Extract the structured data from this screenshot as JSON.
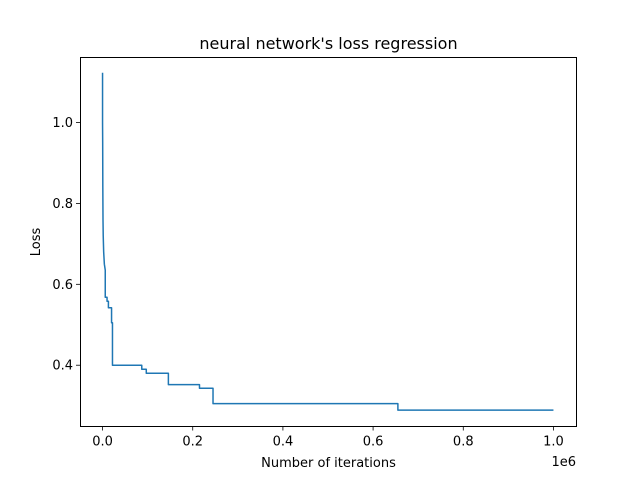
{
  "chart_data": {
    "type": "line",
    "title": "neural network's loss regression",
    "xlabel": "Number of iterations",
    "ylabel": "Loss",
    "x_offset_label": "1e6",
    "xlim": [
      -50000,
      1050000
    ],
    "ylim": [
      0.2485,
      1.1607
    ],
    "grid": false,
    "legend": "none",
    "x_ticks": [
      {
        "value": 0,
        "label": "0.0"
      },
      {
        "value": 200000,
        "label": "0.2"
      },
      {
        "value": 400000,
        "label": "0.4"
      },
      {
        "value": 600000,
        "label": "0.6"
      },
      {
        "value": 800000,
        "label": "0.8"
      },
      {
        "value": 1000000,
        "label": "1.0"
      }
    ],
    "y_ticks": [
      {
        "value": 0.4,
        "label": "0.4"
      },
      {
        "value": 0.6,
        "label": "0.6"
      },
      {
        "value": 0.8,
        "label": "0.8"
      },
      {
        "value": 1.0,
        "label": "1.0"
      }
    ],
    "series": [
      {
        "color": "#1f77b4",
        "points": [
          [
            0,
            1.123
          ],
          [
            0,
            1.0
          ],
          [
            300,
            0.95
          ],
          [
            600,
            0.84
          ],
          [
            1000,
            0.76
          ],
          [
            1500,
            0.72
          ],
          [
            2500,
            0.68
          ],
          [
            4000,
            0.65
          ],
          [
            6000,
            0.635
          ],
          [
            6000,
            0.568
          ],
          [
            10000,
            0.568
          ],
          [
            10000,
            0.558
          ],
          [
            13000,
            0.558
          ],
          [
            13000,
            0.542
          ],
          [
            20000,
            0.542
          ],
          [
            20000,
            0.505
          ],
          [
            20000,
            0.505
          ],
          [
            20000,
            0.505
          ],
          [
            22000,
            0.505
          ],
          [
            22000,
            0.455
          ],
          [
            22000,
            0.455
          ],
          [
            22000,
            0.4
          ],
          [
            87000,
            0.4
          ],
          [
            87000,
            0.39
          ],
          [
            97000,
            0.39
          ],
          [
            97000,
            0.38
          ],
          [
            146000,
            0.38
          ],
          [
            146000,
            0.352
          ],
          [
            215000,
            0.352
          ],
          [
            215000,
            0.343
          ],
          [
            245000,
            0.343
          ],
          [
            245000,
            0.305
          ],
          [
            655000,
            0.305
          ],
          [
            655000,
            0.289
          ],
          [
            1000000,
            0.289
          ]
        ]
      }
    ]
  }
}
